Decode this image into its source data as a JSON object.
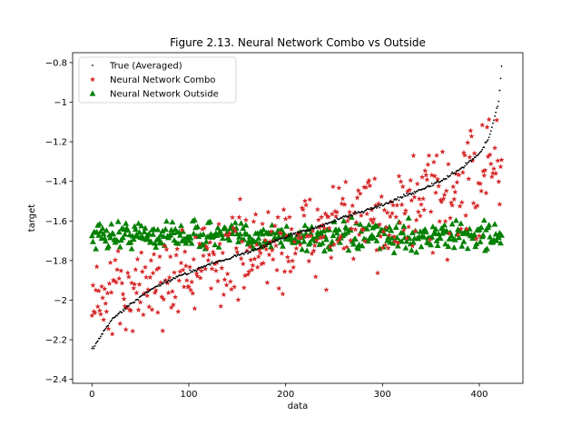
{
  "chart_data": {
    "type": "scatter",
    "title": "Figure 2.13. Neural Network Combo vs Outside",
    "xlabel": "data",
    "ylabel": "target",
    "xlim": [
      -20,
      445
    ],
    "ylim": [
      -2.42,
      -0.75
    ],
    "xticks": [
      0,
      100,
      200,
      300,
      400
    ],
    "yticks": [
      -2.4,
      -2.2,
      -2.0,
      -1.8,
      -1.6,
      -1.4,
      -1.2,
      -1.0,
      -0.8
    ],
    "grid": false,
    "legend_position": "top-left",
    "n_points": 424,
    "series": [
      {
        "name": "True (Averaged)",
        "marker": "dot",
        "color": "#000000",
        "x": [
          0,
          20,
          40,
          60,
          80,
          100,
          120,
          140,
          160,
          180,
          200,
          220,
          240,
          260,
          280,
          300,
          320,
          340,
          360,
          380,
          400,
          410,
          420,
          423
        ],
        "y": [
          -2.25,
          -2.1,
          -2.02,
          -1.95,
          -1.9,
          -1.86,
          -1.82,
          -1.79,
          -1.76,
          -1.72,
          -1.68,
          -1.65,
          -1.62,
          -1.58,
          -1.55,
          -1.52,
          -1.48,
          -1.44,
          -1.4,
          -1.34,
          -1.26,
          -1.18,
          -1.0,
          -0.82
        ]
      },
      {
        "name": "Neural Network Combo",
        "marker": "star",
        "color": "#d62728",
        "x": [
          0,
          40,
          80,
          120,
          160,
          200,
          240,
          280,
          320,
          360,
          380,
          400,
          420
        ],
        "y": [
          -2.05,
          -1.95,
          -1.88,
          -1.82,
          -1.76,
          -1.72,
          -1.64,
          -1.6,
          -1.55,
          -1.5,
          -1.45,
          -1.4,
          -1.3
        ]
      },
      {
        "name": "Neural Network Outside",
        "marker": "triangle",
        "color": "#008000",
        "x": [
          0,
          100,
          200,
          300,
          423
        ],
        "y": [
          -1.67,
          -1.67,
          -1.68,
          -1.68,
          -1.67
        ]
      }
    ]
  }
}
